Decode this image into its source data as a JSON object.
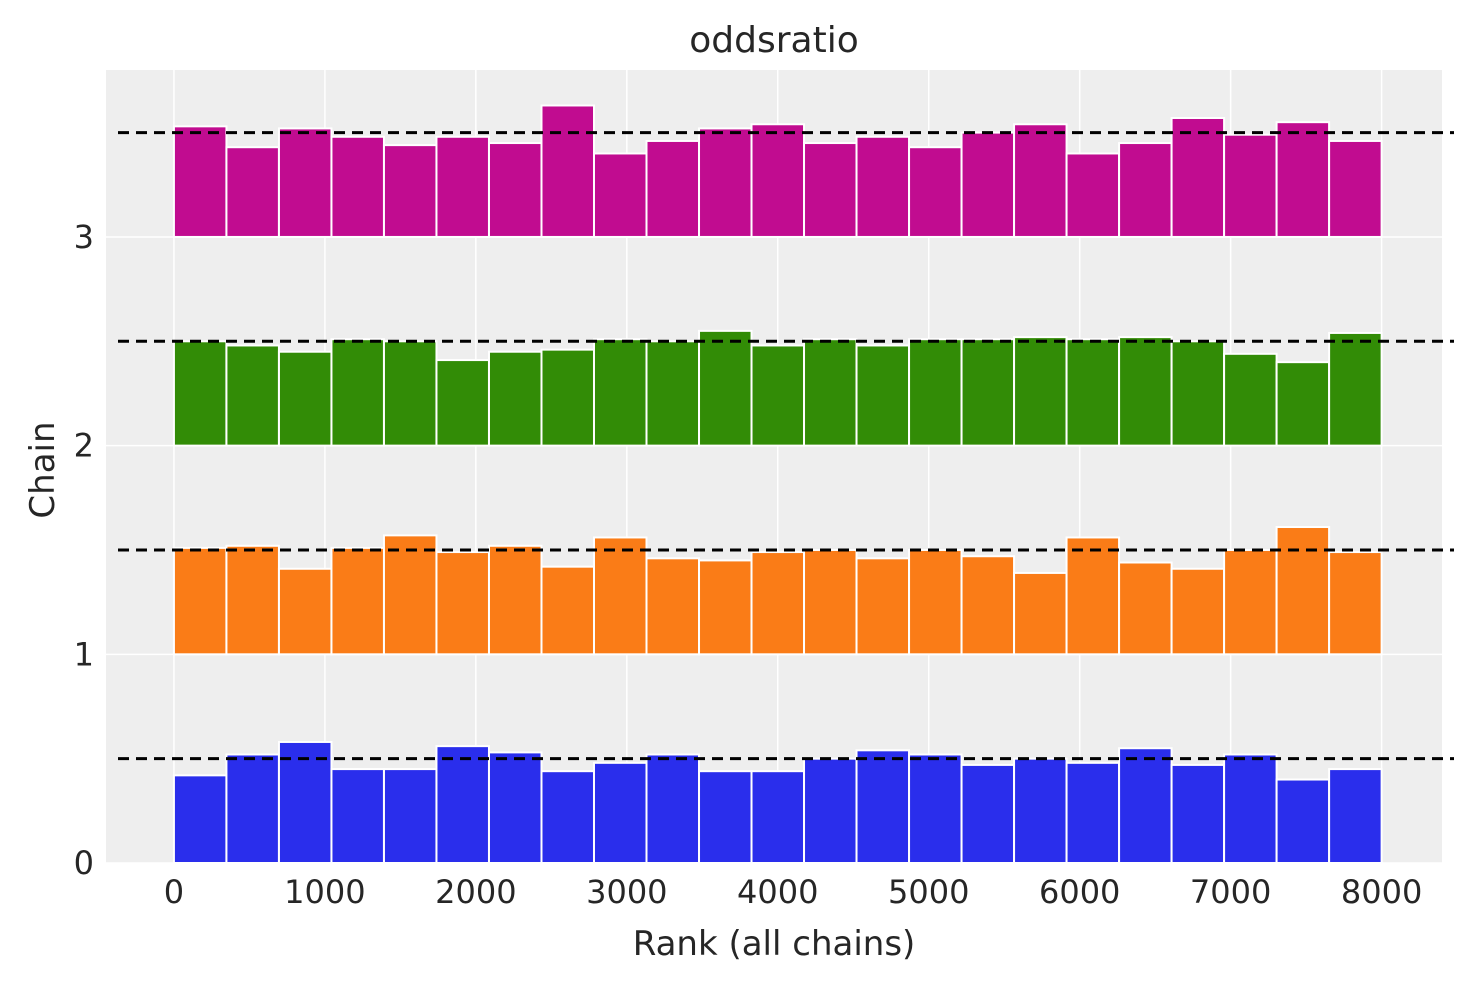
{
  "chart_data": {
    "type": "bar",
    "title": "oddsratio",
    "xlabel": "Rank (all chains)",
    "ylabel": "Chain",
    "xlim": [
      -450,
      8400
    ],
    "ylim": [
      0,
      3.8
    ],
    "xticks": [
      0,
      1000,
      2000,
      3000,
      4000,
      5000,
      6000,
      7000,
      8000
    ],
    "yticks": [
      0,
      1,
      2,
      3
    ],
    "grid": true,
    "bin_width": 347.8,
    "bin_starts": [
      0,
      347.8,
      695.7,
      1043.5,
      1391.3,
      1739.1,
      2087.0,
      2434.8,
      2782.6,
      3130.4,
      3478.3,
      3826.1,
      4173.9,
      4521.7,
      4869.6,
      5217.4,
      5565.2,
      5913.0,
      6260.9,
      6608.7,
      6956.5,
      7304.3,
      7652.2
    ],
    "reference_line": 0.5,
    "series": [
      {
        "chain": 0,
        "color": "#2a2eec",
        "values": [
          0.42,
          0.52,
          0.58,
          0.45,
          0.45,
          0.56,
          0.53,
          0.44,
          0.48,
          0.52,
          0.44,
          0.44,
          0.5,
          0.54,
          0.52,
          0.47,
          0.5,
          0.48,
          0.55,
          0.47,
          0.52,
          0.4,
          0.45
        ]
      },
      {
        "chain": 1,
        "color": "#fa7c17",
        "values": [
          0.51,
          0.52,
          0.41,
          0.51,
          0.57,
          0.49,
          0.52,
          0.42,
          0.56,
          0.46,
          0.45,
          0.49,
          0.5,
          0.46,
          0.5,
          0.47,
          0.39,
          0.56,
          0.44,
          0.41,
          0.5,
          0.61,
          0.49
        ]
      },
      {
        "chain": 2,
        "color": "#328c06",
        "values": [
          0.5,
          0.48,
          0.45,
          0.51,
          0.5,
          0.41,
          0.45,
          0.46,
          0.51,
          0.5,
          0.55,
          0.48,
          0.51,
          0.48,
          0.51,
          0.51,
          0.52,
          0.51,
          0.52,
          0.5,
          0.44,
          0.4,
          0.54
        ]
      },
      {
        "chain": 3,
        "color": "#c10c90",
        "values": [
          0.53,
          0.43,
          0.52,
          0.48,
          0.44,
          0.48,
          0.45,
          0.63,
          0.4,
          0.46,
          0.52,
          0.54,
          0.45,
          0.48,
          0.43,
          0.5,
          0.54,
          0.4,
          0.45,
          0.57,
          0.49,
          0.55,
          0.46
        ]
      }
    ]
  }
}
